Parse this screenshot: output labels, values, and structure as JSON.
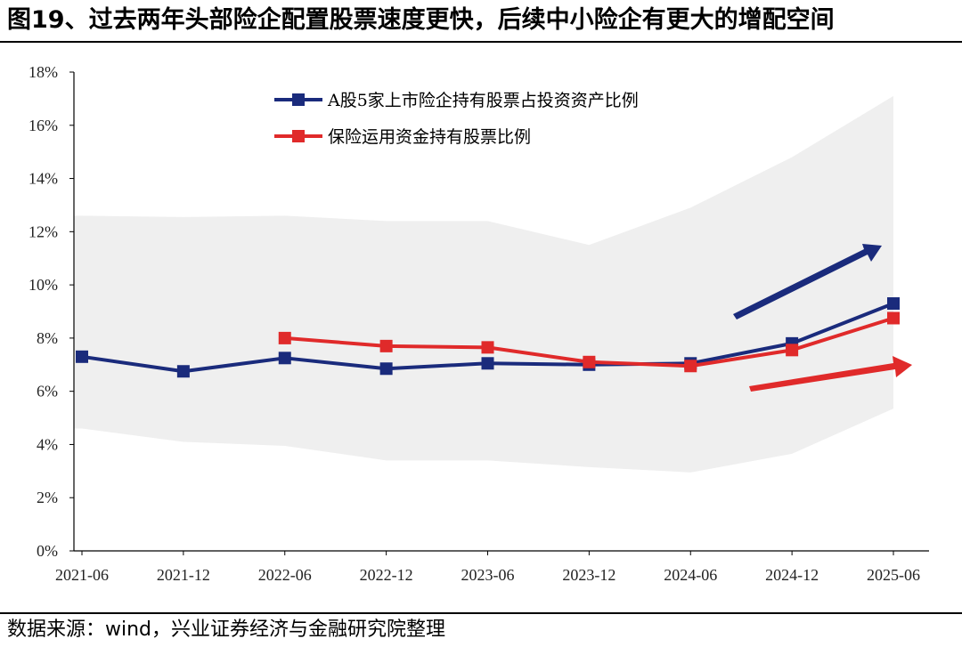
{
  "header": {
    "title": "图19、过去两年头部险企配置股票速度更快，后续中小险企有更大的增配空间"
  },
  "footer": {
    "source": "数据来源：wind，兴业证券经济与金融研究院整理"
  },
  "chart_data": {
    "type": "line",
    "title": "图19、过去两年头部险企配置股票速度更快，后续中小险企有更大的增配空间",
    "xlabel": "",
    "ylabel": "",
    "ylim": [
      0,
      18
    ],
    "y_ticks": [
      "0%",
      "2%",
      "4%",
      "6%",
      "8%",
      "10%",
      "12%",
      "14%",
      "16%",
      "18%"
    ],
    "categories": [
      "2021-06",
      "2021-12",
      "2022-06",
      "2022-12",
      "2023-06",
      "2023-12",
      "2024-06",
      "2024-12",
      "2025-06"
    ],
    "series": [
      {
        "name": "A股5家上市险企持有股票占投资资产比例",
        "color": "#1a2b7c",
        "values": [
          7.3,
          6.75,
          7.25,
          6.85,
          7.05,
          7.0,
          7.05,
          7.8,
          9.3
        ]
      },
      {
        "name": "保险运用资金持有股票比例",
        "color": "#e02a2a",
        "values": [
          null,
          null,
          8.0,
          7.7,
          7.65,
          7.1,
          6.95,
          7.55,
          8.75
        ]
      }
    ],
    "band": {
      "color": "#efefef",
      "upper": [
        12.6,
        12.55,
        12.6,
        12.4,
        12.4,
        11.5,
        12.9,
        14.8,
        17.1
      ],
      "lower": [
        4.6,
        4.1,
        3.95,
        3.4,
        3.4,
        3.15,
        2.95,
        3.65,
        5.35
      ]
    },
    "legend": "top-left",
    "grid": false
  }
}
